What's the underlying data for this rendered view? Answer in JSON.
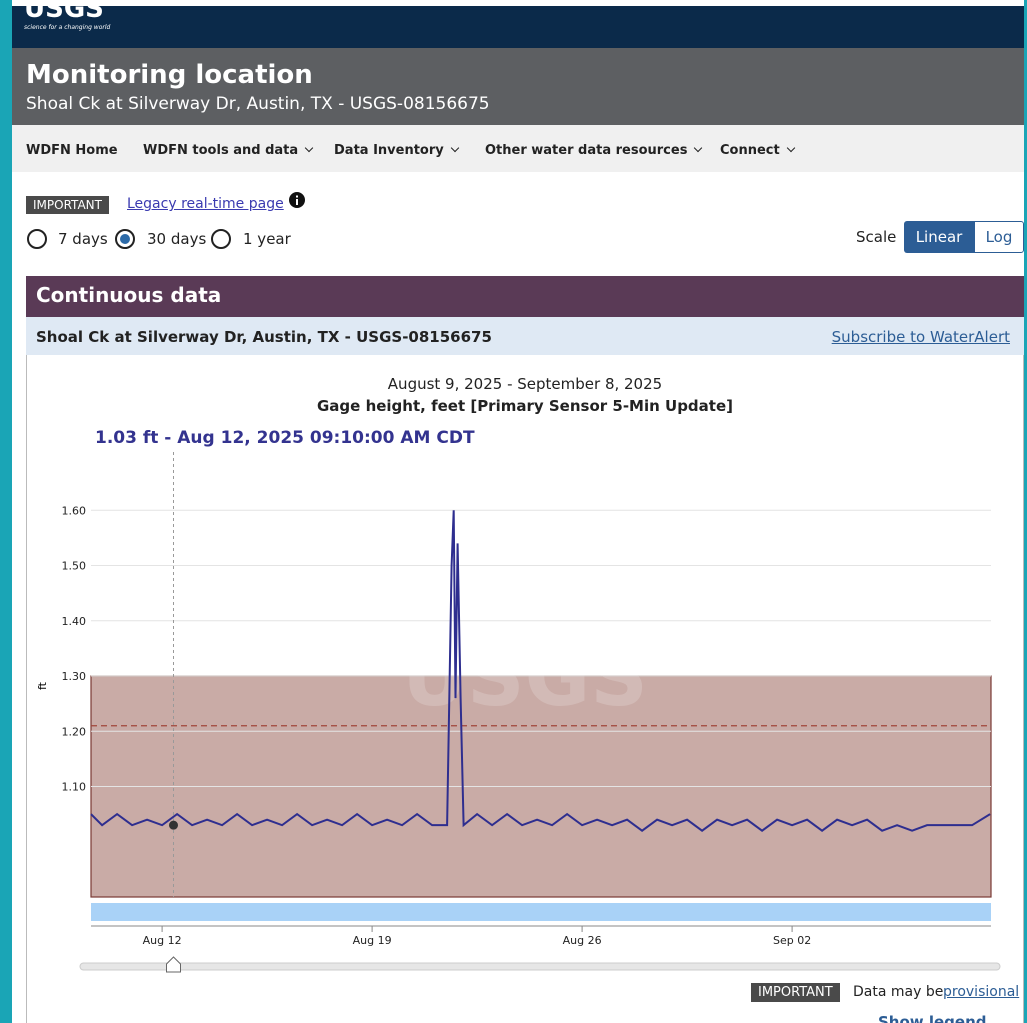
{
  "header": {
    "logo": "USGS",
    "tagline": "science for a changing world",
    "title": "Monitoring location",
    "subtitle": "Shoal Ck at Silverway Dr, Austin, TX - USGS-08156675"
  },
  "nav": [
    "WDFN Home",
    "WDFN tools and data",
    "Data Inventory",
    "Other water data resources",
    "Connect"
  ],
  "notice": {
    "badge": "IMPORTANT",
    "link": "Legacy real-time page"
  },
  "periods": [
    "7 days",
    "30 days",
    "1 year"
  ],
  "scale": {
    "label": "Scale",
    "options": [
      "Linear",
      "Log"
    ]
  },
  "panel": {
    "title": "Continuous data",
    "site": "Shoal Ck at Silverway Dr, Austin, TX - USGS-08156675",
    "subscribe": "Subscribe to WaterAlert"
  },
  "chart_data": {
    "type": "line",
    "title": "August 9, 2025 - September 8, 2025",
    "subtitle": "Gage height, feet [Primary Sensor 5-Min Update]",
    "tooltip": "1.03 ft - Aug 12, 2025 09:10:00 AM CDT",
    "watermark": "USGS",
    "y_label": "ft",
    "x": [
      9.63,
      10.0,
      10.5,
      11.0,
      11.5,
      12.0,
      12.5,
      13.0,
      13.5,
      14.0,
      14.5,
      15.0,
      15.5,
      16.0,
      16.5,
      17.0,
      17.5,
      18.0,
      18.5,
      19.0,
      19.5,
      20.0,
      20.5,
      21.0,
      21.5,
      21.65,
      21.72,
      21.78,
      21.85,
      21.95,
      22.05,
      22.5,
      23.0,
      23.5,
      24.0,
      24.5,
      25.0,
      25.5,
      26.0,
      26.5,
      27.0,
      27.5,
      28.0,
      28.5,
      29.0,
      29.5,
      30.0,
      30.5,
      31.0,
      31.5,
      32.0,
      32.5,
      33.0,
      33.5,
      34.0,
      34.5,
      35.0,
      35.5,
      36.0,
      36.5,
      37.0,
      37.5,
      38.0,
      38.5,
      39.0,
      39.6
    ],
    "series": [
      {
        "name": "Gage height",
        "color": "#2e2e8f",
        "values": [
          1.05,
          1.03,
          1.05,
          1.03,
          1.04,
          1.03,
          1.05,
          1.03,
          1.04,
          1.03,
          1.05,
          1.03,
          1.04,
          1.03,
          1.05,
          1.03,
          1.04,
          1.03,
          1.05,
          1.03,
          1.04,
          1.03,
          1.05,
          1.03,
          1.03,
          1.5,
          1.6,
          1.26,
          1.54,
          1.26,
          1.03,
          1.05,
          1.03,
          1.05,
          1.03,
          1.04,
          1.03,
          1.05,
          1.03,
          1.04,
          1.03,
          1.04,
          1.02,
          1.04,
          1.03,
          1.04,
          1.02,
          1.04,
          1.03,
          1.04,
          1.02,
          1.04,
          1.03,
          1.04,
          1.02,
          1.04,
          1.03,
          1.04,
          1.02,
          1.03,
          1.02,
          1.03,
          1.03,
          1.03,
          1.03,
          1.05
        ]
      }
    ],
    "cursor_x": 12.38,
    "cursor_value": 1.03,
    "shaded_max": 1.3,
    "dashed_line": 1.21,
    "xlim": [
      9.63,
      39.63
    ],
    "xticks": [
      {
        "value": 12,
        "label": "Aug 12"
      },
      {
        "value": 19,
        "label": "Aug 19"
      },
      {
        "value": 26,
        "label": "Aug 26"
      },
      {
        "value": 33,
        "label": "Sep 02"
      }
    ],
    "ylim": [
      0.9,
      1.7
    ],
    "yticks": [
      {
        "value": 1.1,
        "label": "1.10"
      },
      {
        "value": 1.2,
        "label": "1.20"
      },
      {
        "value": 1.3,
        "label": "1.30"
      },
      {
        "value": 1.4,
        "label": "1.40"
      },
      {
        "value": 1.5,
        "label": "1.50"
      },
      {
        "value": 1.6,
        "label": "1.60"
      }
    ],
    "grid": true
  },
  "footer": {
    "badge": "IMPORTANT",
    "text": "Data may be",
    "link": "provisional",
    "legend": "Show legend"
  }
}
